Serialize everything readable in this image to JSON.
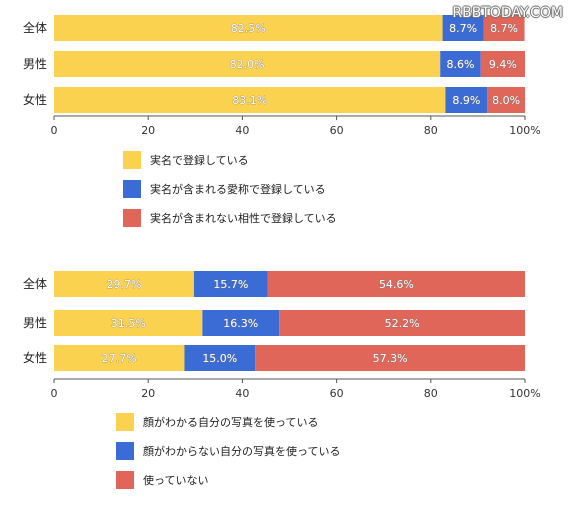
{
  "watermark": "RBBTODAY.COM",
  "chart_data": [
    {
      "type": "bar",
      "orientation": "horizontal",
      "stacked": true,
      "categories": [
        "全体",
        "男性",
        "女性"
      ],
      "series": [
        {
          "name": "実名で登録している",
          "color": "#fbd250",
          "values": [
            82.5,
            82.0,
            83.1
          ],
          "labels": [
            "82.5%",
            "82.0%",
            "83.1%"
          ]
        },
        {
          "name": "実名が含まれる愛称で登録している",
          "color": "#3b6bd4",
          "values": [
            8.7,
            8.6,
            8.9
          ],
          "labels": [
            "8.7%",
            "8.6%",
            "8.9%"
          ]
        },
        {
          "name": "実名が含まれない相性で登録している",
          "color": "#df6659",
          "values": [
            8.7,
            9.4,
            8.0
          ],
          "labels": [
            "8.7%",
            "9.4%",
            "8.0%"
          ]
        }
      ],
      "xlim": [
        0,
        100
      ],
      "xticks": [
        "0",
        "20",
        "40",
        "60",
        "80",
        "100%"
      ],
      "legend_position": "bottom"
    },
    {
      "type": "bar",
      "orientation": "horizontal",
      "stacked": true,
      "categories": [
        "全体",
        "男性",
        "女性"
      ],
      "series": [
        {
          "name": "顔がわかる自分の写真を使っている",
          "color": "#fbd250",
          "values": [
            29.7,
            31.5,
            27.7
          ],
          "labels": [
            "29.7%",
            "31.5%",
            "27.7%"
          ]
        },
        {
          "name": "顔がわからない自分の写真を使っている",
          "color": "#3b6bd4",
          "values": [
            15.7,
            16.3,
            15.0
          ],
          "labels": [
            "15.7%",
            "16.3%",
            "15.0%"
          ]
        },
        {
          "name": "使っていない",
          "color": "#df6659",
          "values": [
            54.6,
            52.2,
            57.3
          ],
          "labels": [
            "54.6%",
            "52.2%",
            "57.3%"
          ]
        }
      ],
      "xlim": [
        0,
        100
      ],
      "xticks": [
        "0",
        "20",
        "40",
        "60",
        "80",
        "100%"
      ],
      "legend_position": "bottom"
    }
  ]
}
